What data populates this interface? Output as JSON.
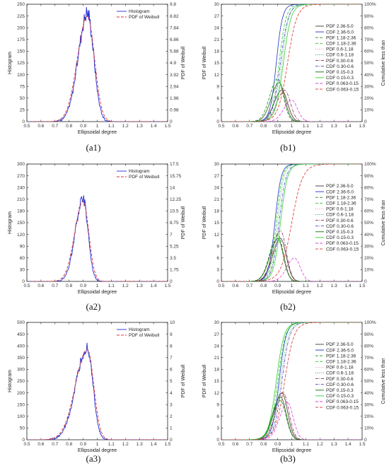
{
  "figure": {
    "captions": [
      "(a1)",
      "(b1)",
      "(a2)",
      "(b2)",
      "(a3)",
      "(b3)"
    ]
  },
  "chart_data": [
    {
      "id": "a1",
      "type": "line",
      "xlabel": "Ellipsoidal degree",
      "ylabel": "Histogram",
      "y2label": "PDF of Weibull",
      "xlim": [
        0.5,
        1.5
      ],
      "xticks": [
        "0.5",
        "0.6",
        "0.7",
        "0.8",
        "0.9",
        "1",
        "1.1",
        "1.2",
        "1.3",
        "1.4",
        "1.5"
      ],
      "ylim": [
        0,
        250
      ],
      "yticks": [
        "0",
        "25",
        "50",
        "75",
        "100",
        "125",
        "150",
        "175",
        "200",
        "225",
        "250"
      ],
      "y2ticks": [
        "0",
        "0.98",
        "1.96",
        "2.94",
        "3.92",
        "4.9",
        "5.88",
        "6.86",
        "7.84",
        "8.82",
        "9.8"
      ],
      "series": [
        {
          "name": "Histogram",
          "color": "#1f2fd6",
          "style": "solid",
          "peak_x": 0.93,
          "peak_y": 232,
          "sigma_left": 0.065,
          "sigma_right": 0.045,
          "noise": 0.08
        },
        {
          "name": "PDF of Weibull",
          "color": "#e03030",
          "style": "dashed",
          "peak_x": 0.93,
          "peak_y": 225,
          "sigma_left": 0.07,
          "sigma_right": 0.05,
          "noise": 0
        }
      ]
    },
    {
      "id": "b1",
      "type": "line",
      "xlabel": "Ellipsoidal degree",
      "ylabel": "PDF of Weibull",
      "y2label": "Cumulative less than",
      "xlim": [
        0.5,
        1.5
      ],
      "xticks": [
        "0.5",
        "0.6",
        "0.7",
        "0.8",
        "0.9",
        "1",
        "1.1",
        "1.2",
        "1.3",
        "1.4",
        "1.5"
      ],
      "ylim": [
        0,
        30
      ],
      "yticks": [
        "0",
        "3",
        "6",
        "9",
        "12",
        "15",
        "18",
        "21",
        "24",
        "27",
        "30"
      ],
      "y2ticks": [
        "0",
        "10%",
        "20%",
        "30%",
        "40%",
        "50%",
        "60%",
        "70%",
        "80%",
        "90%",
        "100%"
      ],
      "series": [
        {
          "name": "PDF 2.36-5.0",
          "color": "#3a3a3a",
          "style": "solid",
          "kind": "pdf",
          "mu": 0.93,
          "peak": 8
        },
        {
          "name": "CDF 2.36-5.0",
          "color": "#2030d0",
          "style": "solid",
          "kind": "cdf",
          "mu": 0.89,
          "width": 0.04
        },
        {
          "name": "PDF 1.18-2.36",
          "color": "#228822",
          "style": "dashed",
          "kind": "pdf",
          "mu": 0.9,
          "peak": 11
        },
        {
          "name": "CDF 1.18-2.36",
          "color": "#22cc22",
          "style": "dashed",
          "kind": "cdf",
          "mu": 0.91,
          "width": 0.045
        },
        {
          "name": "PDF 0.6-1.18",
          "color": "#ff8888",
          "style": "dotted",
          "kind": "pdf",
          "mu": 0.92,
          "peak": 9
        },
        {
          "name": "CDF 0.6-1.18",
          "color": "#20b040",
          "style": "dotted",
          "kind": "cdf",
          "mu": 0.93,
          "width": 0.045
        },
        {
          "name": "PDF 0.30-0.6",
          "color": "#8a2a4a",
          "style": "dashdot",
          "kind": "pdf",
          "mu": 0.95,
          "peak": 8
        },
        {
          "name": "CDF 0.30-0.6",
          "color": "#4040c0",
          "style": "dashdot",
          "kind": "cdf",
          "mu": 0.92,
          "width": 0.05
        },
        {
          "name": "PDF 0.15-0.3",
          "color": "#106a10",
          "style": "solid",
          "kind": "pdf",
          "mu": 0.91,
          "peak": 10
        },
        {
          "name": "CDF 0.15-0.3",
          "color": "#30d030",
          "style": "solid",
          "kind": "cdf",
          "mu": 0.94,
          "width": 0.05
        },
        {
          "name": "PDF 0.063-0.15",
          "color": "#e040e0",
          "style": "dashed",
          "kind": "pdf",
          "mu": 1.0,
          "peak": 5.5
        },
        {
          "name": "CDF 0.063-0.15",
          "color": "#e03030",
          "style": "dashed",
          "kind": "cdf",
          "mu": 0.97,
          "width": 0.06
        }
      ]
    },
    {
      "id": "a2",
      "type": "line",
      "xlabel": "Ellipsoidal degree",
      "ylabel": "Histogram",
      "y2label": "PDF of Weibull",
      "xlim": [
        0.5,
        1.5
      ],
      "xticks": [
        "0.5",
        "0.6",
        "0.7",
        "0.8",
        "0.9",
        "1",
        "1.1",
        "1.2",
        "1.3",
        "1.4",
        "1.5"
      ],
      "ylim": [
        0,
        300
      ],
      "yticks": [
        "0",
        "30",
        "60",
        "90",
        "120",
        "150",
        "180",
        "210",
        "240",
        "270",
        "300"
      ],
      "y2ticks": [
        "0",
        "1.75",
        "3.5",
        "5.25",
        "7",
        "8.75",
        "10.5",
        "12.25",
        "14",
        "15.75",
        "17.5"
      ],
      "series": [
        {
          "name": "Histogram",
          "color": "#1f2fd6",
          "style": "solid",
          "peak_x": 0.9,
          "peak_y": 212,
          "sigma_left": 0.055,
          "sigma_right": 0.035,
          "noise": 0.07
        },
        {
          "name": "PDF of Weibull",
          "color": "#e03030",
          "style": "dashed",
          "peak_x": 0.9,
          "peak_y": 205,
          "sigma_left": 0.06,
          "sigma_right": 0.04,
          "noise": 0
        }
      ]
    },
    {
      "id": "b2",
      "type": "line",
      "xlabel": "Ellipsoidal degree",
      "ylabel": "PDF of Weibull",
      "y2label": "Cumulative less than",
      "xlim": [
        0.5,
        1.5
      ],
      "xticks": [
        "0.5",
        "0.6",
        "0.7",
        "0.8",
        "0.9",
        "1",
        "1.1",
        "1.2",
        "1.3",
        "1.4",
        "1.5"
      ],
      "ylim": [
        0,
        30
      ],
      "yticks": [
        "0",
        "3",
        "6",
        "9",
        "12",
        "15",
        "18",
        "21",
        "24",
        "27",
        "30"
      ],
      "y2ticks": [
        "0",
        "10%",
        "20%",
        "30%",
        "40%",
        "50%",
        "60%",
        "70%",
        "80%",
        "90%",
        "100%"
      ],
      "series": [
        {
          "name": "PDF 2.36-5.0",
          "color": "#3a3a3a",
          "style": "solid",
          "kind": "pdf",
          "mu": 0.92,
          "peak": 11
        },
        {
          "name": "CDF 2.36-5.0",
          "color": "#2030d0",
          "style": "solid",
          "kind": "cdf",
          "mu": 0.88,
          "width": 0.04
        },
        {
          "name": "PDF 1.18-2.36",
          "color": "#228822",
          "style": "dashed",
          "kind": "pdf",
          "mu": 0.9,
          "peak": 12
        },
        {
          "name": "CDF 1.18-2.36",
          "color": "#22cc22",
          "style": "dashed",
          "kind": "cdf",
          "mu": 0.89,
          "width": 0.04
        },
        {
          "name": "PDF 0.6-1.18",
          "color": "#ff8888",
          "style": "dotted",
          "kind": "pdf",
          "mu": 0.91,
          "peak": 10
        },
        {
          "name": "CDF 0.6-1.18",
          "color": "#20b040",
          "style": "dotted",
          "kind": "cdf",
          "mu": 0.9,
          "width": 0.04
        },
        {
          "name": "PDF 0.30-0.6",
          "color": "#8a2a4a",
          "style": "dashdot",
          "kind": "pdf",
          "mu": 0.92,
          "peak": 13
        },
        {
          "name": "CDF 0.30-0.6",
          "color": "#4040c0",
          "style": "dashdot",
          "kind": "cdf",
          "mu": 0.91,
          "width": 0.045
        },
        {
          "name": "PDF 0.15-0.3",
          "color": "#106a10",
          "style": "solid",
          "kind": "pdf",
          "mu": 0.9,
          "peak": 11
        },
        {
          "name": "CDF 0.15-0.3",
          "color": "#30d030",
          "style": "solid",
          "kind": "cdf",
          "mu": 0.92,
          "width": 0.045
        },
        {
          "name": "PDF 0.063-0.15",
          "color": "#e040e0",
          "style": "dashed",
          "kind": "pdf",
          "mu": 1.02,
          "peak": 6
        },
        {
          "name": "CDF 0.063-0.15",
          "color": "#e03030",
          "style": "dashed",
          "kind": "cdf",
          "mu": 1.0,
          "width": 0.07
        }
      ]
    },
    {
      "id": "a3",
      "type": "line",
      "xlabel": "Ellipsoidal degree",
      "ylabel": "Histogram",
      "y2label": "PDF of Weibull",
      "xlim": [
        0.5,
        1.5
      ],
      "xticks": [
        "0.5",
        "0.6",
        "0.7",
        "0.8",
        "0.9",
        "1",
        "1.1",
        "1.2",
        "1.3",
        "1.4",
        "1.5"
      ],
      "ylim": [
        0,
        500
      ],
      "yticks": [
        "0",
        "50",
        "100",
        "150",
        "200",
        "250",
        "300",
        "350",
        "400",
        "450",
        "500"
      ],
      "y2ticks": [
        "0",
        "1",
        "2",
        "3",
        "4",
        "5",
        "6",
        "7",
        "8",
        "9",
        "10"
      ],
      "series": [
        {
          "name": "Histogram",
          "color": "#1f2fd6",
          "style": "solid",
          "peak_x": 0.93,
          "peak_y": 395,
          "sigma_left": 0.08,
          "sigma_right": 0.04,
          "noise": 0.07
        },
        {
          "name": "PDF of Weibull",
          "color": "#e03030",
          "style": "dashed",
          "peak_x": 0.93,
          "peak_y": 385,
          "sigma_left": 0.085,
          "sigma_right": 0.045,
          "noise": 0
        }
      ]
    },
    {
      "id": "b3",
      "type": "line",
      "xlabel": "Ellipsoidal degree",
      "ylabel": "PDF of Weibull",
      "y2label": "Cumulative less than",
      "xlim": [
        0.5,
        1.5
      ],
      "xticks": [
        "0.5",
        "0.6",
        "0.7",
        "0.8",
        "0.9",
        "1",
        "1.1",
        "1.2",
        "1.3",
        "1.4",
        "1.5"
      ],
      "ylim": [
        0,
        30
      ],
      "yticks": [
        "0",
        "3",
        "6",
        "9",
        "12",
        "15",
        "18",
        "21",
        "24",
        "27",
        "30"
      ],
      "y2ticks": [
        "0",
        "10%",
        "20%",
        "30%",
        "40%",
        "50%",
        "60%",
        "70%",
        "80%",
        "90%",
        "100%"
      ],
      "series": [
        {
          "name": "PDF 2.36-5.0",
          "color": "#3a3a3a",
          "style": "solid",
          "kind": "pdf",
          "mu": 0.93,
          "peak": 12
        },
        {
          "name": "CDF 2.36-5.0",
          "color": "#2030d0",
          "style": "solid",
          "kind": "cdf",
          "mu": 0.91,
          "width": 0.045
        },
        {
          "name": "PDF 1.18-2.36",
          "color": "#228822",
          "style": "dashed",
          "kind": "pdf",
          "mu": 0.92,
          "peak": 10
        },
        {
          "name": "CDF 1.18-2.36",
          "color": "#22cc22",
          "style": "dashed",
          "kind": "cdf",
          "mu": 0.9,
          "width": 0.05
        },
        {
          "name": "PDF 0.6-1.18",
          "color": "#ff8888",
          "style": "dotted",
          "kind": "pdf",
          "mu": 0.93,
          "peak": 9
        },
        {
          "name": "CDF 0.6-1.18",
          "color": "#20b040",
          "style": "dotted",
          "kind": "cdf",
          "mu": 0.92,
          "width": 0.05
        },
        {
          "name": "PDF 0.30-0.6",
          "color": "#8a2a4a",
          "style": "dashdot",
          "kind": "pdf",
          "mu": 0.94,
          "peak": 12
        },
        {
          "name": "CDF 0.30-0.6",
          "color": "#4040c0",
          "style": "dashdot",
          "kind": "cdf",
          "mu": 0.93,
          "width": 0.05
        },
        {
          "name": "PDF 0.15-0.3",
          "color": "#106a10",
          "style": "solid",
          "kind": "pdf",
          "mu": 0.92,
          "peak": 11
        },
        {
          "name": "CDF 0.15-0.3",
          "color": "#30d030",
          "style": "solid",
          "kind": "cdf",
          "mu": 0.89,
          "width": 0.05
        },
        {
          "name": "PDF 0.063-0.15",
          "color": "#e040e0",
          "style": "dashed",
          "kind": "pdf",
          "mu": 0.97,
          "peak": 9.5
        },
        {
          "name": "CDF 0.063-0.15",
          "color": "#e03030",
          "style": "dashed",
          "kind": "cdf",
          "mu": 0.95,
          "width": 0.06
        }
      ]
    }
  ]
}
